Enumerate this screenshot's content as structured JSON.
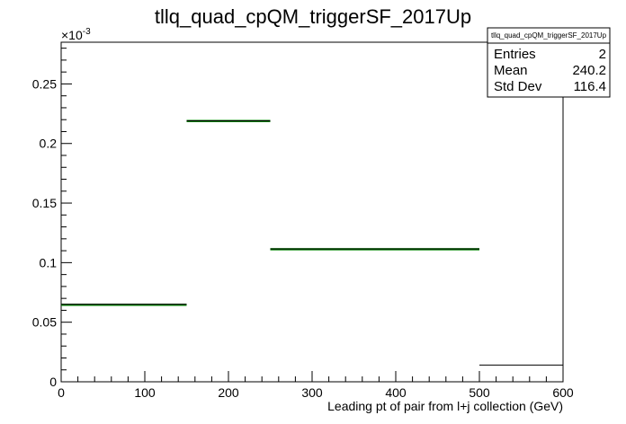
{
  "chart_data": {
    "type": "bar",
    "title": "tllq_quad_cpQM_triggerSF_2017Up",
    "xlabel": "Leading pt of pair from l+j collection (GeV)",
    "ylabel": "",
    "y_multiplier": "×10",
    "y_exponent": "-3",
    "xlim": [
      0,
      600
    ],
    "ylim": [
      0,
      0.285
    ],
    "x_ticks": [
      0,
      100,
      200,
      300,
      400,
      500,
      600
    ],
    "x_tick_labels": [
      "0",
      "100",
      "200",
      "300",
      "400",
      "500",
      "600"
    ],
    "y_ticks": [
      0,
      0.05,
      0.1,
      0.15,
      0.2,
      0.25
    ],
    "y_tick_labels": [
      "0",
      "0.05",
      "0.1",
      "0.15",
      "0.2",
      "0.25"
    ],
    "bins": [
      {
        "xlow": 0,
        "xhigh": 150,
        "value": 0.065,
        "err": 0.0006
      },
      {
        "xlow": 150,
        "xhigh": 250,
        "value": 0.219,
        "err": 0.0008
      },
      {
        "xlow": 250,
        "xhigh": 500,
        "value": 0.1115,
        "err": 0.0007
      },
      {
        "xlow": 500,
        "xhigh": 600,
        "value": 0.014,
        "err": 0
      }
    ],
    "series_colors": {
      "line": "#000000",
      "error_band": "#008000"
    },
    "grid": false,
    "legend": {
      "placement": "top-right",
      "name": "tllq_quad_cpQM_triggerSF_2017Up",
      "rows": [
        {
          "label": "Entries",
          "value": "2"
        },
        {
          "label": "Mean",
          "value": "240.2"
        },
        {
          "label": "Std Dev",
          "value": "116.4"
        }
      ]
    }
  }
}
